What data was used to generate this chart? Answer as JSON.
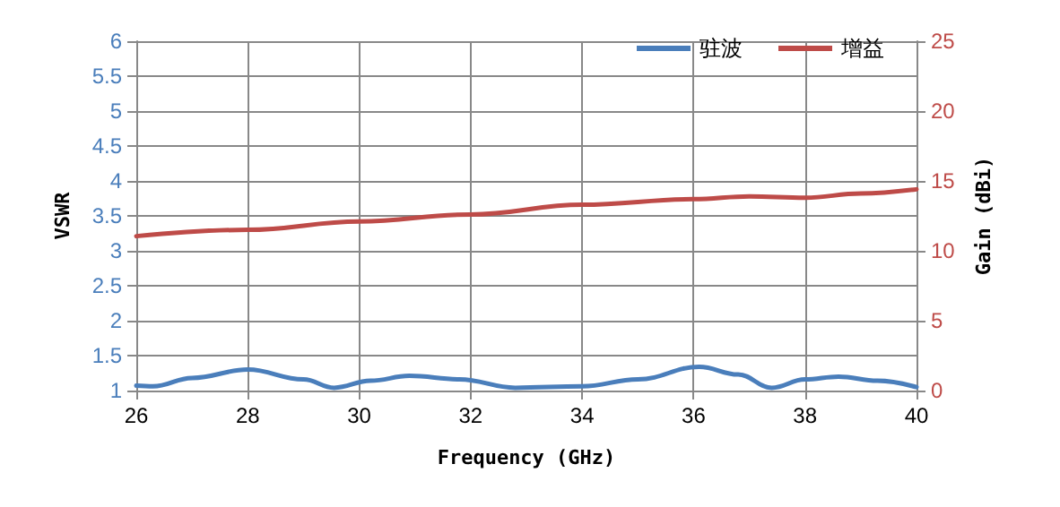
{
  "chart_data": {
    "type": "line",
    "xlabel": "Frequency (GHz)",
    "ylabel": "VSWR",
    "y2label": "Gain (dBi)",
    "xlim": [
      26,
      40
    ],
    "xticks": [
      26,
      28,
      30,
      32,
      34,
      36,
      38,
      40
    ],
    "ylim": [
      1,
      6
    ],
    "yticks": [
      1,
      1.5,
      2,
      2.5,
      3,
      3.5,
      4,
      4.5,
      5,
      5.5,
      6
    ],
    "y2lim": [
      0,
      25
    ],
    "y2ticks": [
      0,
      5,
      10,
      15,
      20,
      25
    ],
    "grid": true,
    "legend": "top right",
    "marker": "none",
    "line_style": "solid",
    "series": [
      {
        "name": "驻波",
        "color": "#4a7ebb",
        "x": [
          26,
          26.3,
          27,
          28,
          29,
          29.55,
          30.2,
          30.9,
          31.8,
          32.8,
          34,
          35,
          36.1,
          36.8,
          37.4,
          38,
          38.6,
          39.3,
          40
        ],
        "values": [
          1.07,
          1.06,
          1.18,
          1.3,
          1.16,
          1.04,
          1.14,
          1.21,
          1.16,
          1.04,
          1.06,
          1.16,
          1.34,
          1.23,
          1.04,
          1.16,
          1.2,
          1.14,
          1.05
        ]
      },
      {
        "name": "增益",
        "color": "#be4b48",
        "axis": "y2",
        "x": [
          26,
          28,
          30,
          32,
          34,
          36,
          37,
          38,
          39,
          40
        ],
        "values": [
          11.05,
          11.5,
          12.1,
          12.6,
          13.3,
          13.7,
          13.9,
          13.8,
          14.1,
          14.4
        ]
      }
    ]
  }
}
